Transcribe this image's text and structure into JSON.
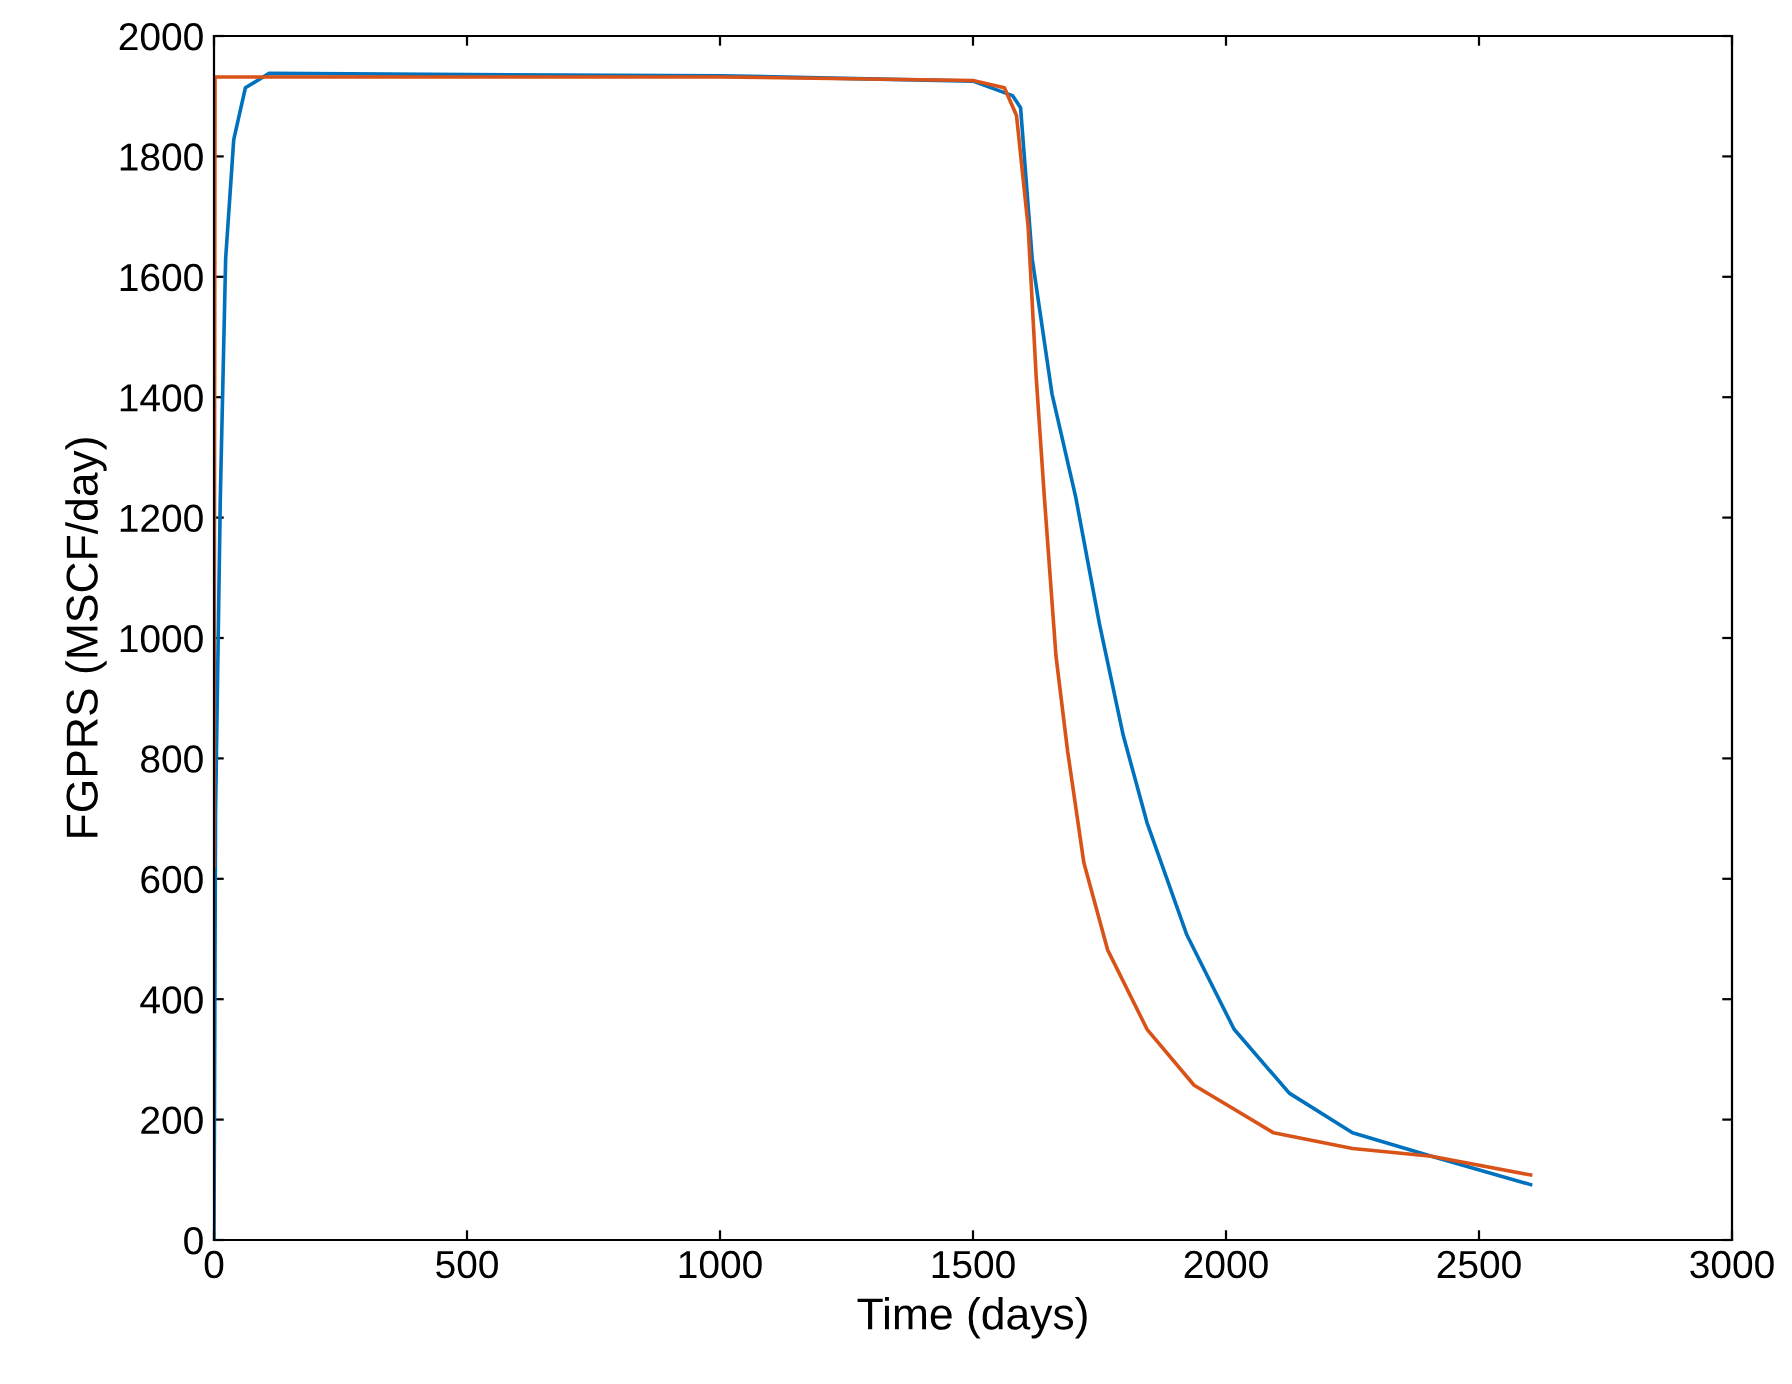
{
  "chart_data": {
    "type": "line",
    "xlabel": "Time (days)",
    "ylabel": "FGPRS (MSCF/day)",
    "xlim": [
      0,
      3000
    ],
    "xticks": [
      0,
      500,
      1000,
      1500,
      2000,
      2500,
      3000
    ],
    "ylim": [
      0,
      2000
    ],
    "yticks": [
      0,
      200,
      400,
      600,
      800,
      1000,
      1200,
      1400,
      1600,
      1800,
      2000
    ],
    "grid": false,
    "series": [
      {
        "color": "#0072bd",
        "x": [
          0,
          3,
          12.5,
          23,
          39,
          62,
          109,
          500,
          1000,
          1500,
          1578,
          1594,
          1617,
          1656,
          1703,
          1750,
          1797,
          1844,
          1922,
          2016,
          2125,
          2250,
          2406,
          2602
        ],
        "values": [
          0,
          706,
          1234,
          1630,
          1828,
          1914,
          1938,
          1936,
          1934,
          1925,
          1901,
          1881,
          1630,
          1406,
          1234,
          1023,
          838,
          693,
          508,
          350,
          244,
          178,
          139,
          92
        ]
      },
      {
        "color": "#d95319",
        "x": [
          0,
          2,
          500,
          1000,
          1500,
          1562,
          1586,
          1609,
          1625,
          1641,
          1664,
          1687,
          1719,
          1766,
          1844,
          1937,
          2094,
          2250,
          2406,
          2602
        ],
        "values": [
          620,
          1932,
          1932,
          1932,
          1926,
          1914,
          1868,
          1683,
          1432,
          1234,
          970,
          812,
          627,
          482,
          350,
          257,
          178,
          152,
          139,
          108
        ]
      }
    ]
  }
}
